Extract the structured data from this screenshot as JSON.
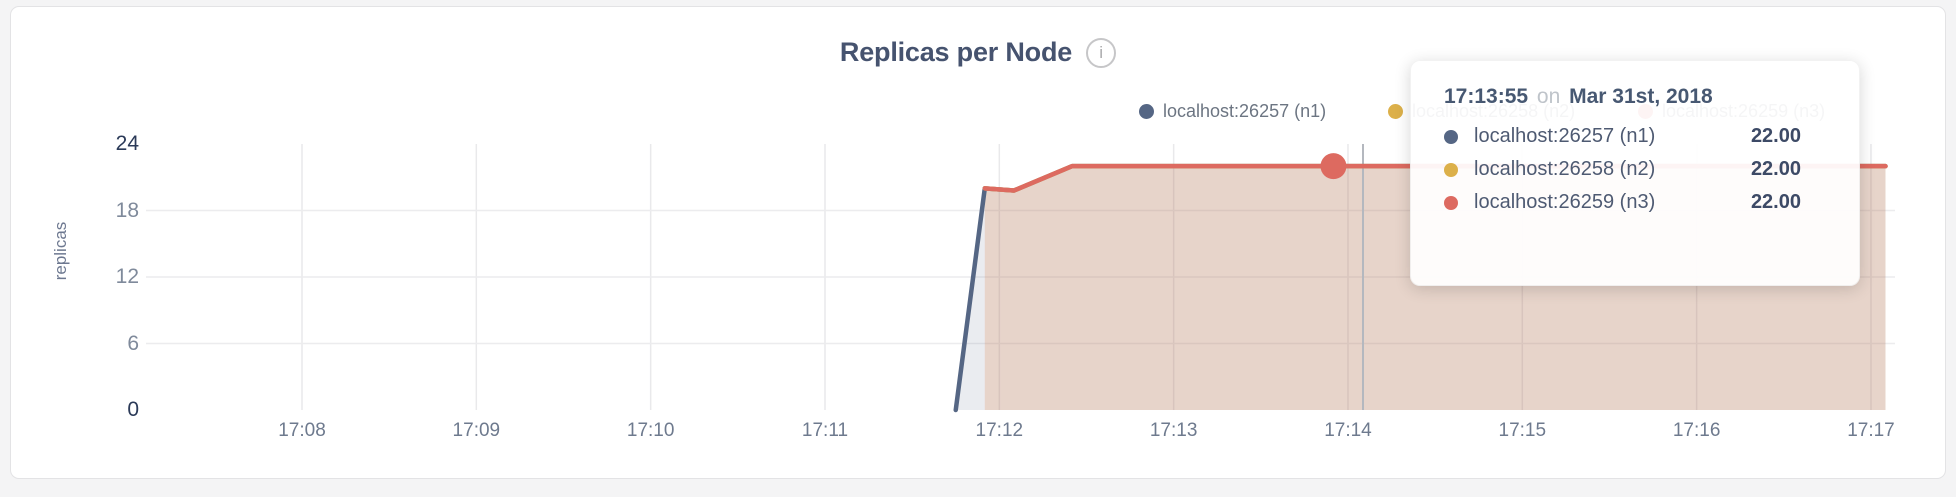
{
  "window": {
    "background": "#f4f4f5"
  },
  "card": {
    "background": "#ffffff",
    "border_color": "#e3e3e5"
  },
  "header": {
    "title": "Replicas per Node",
    "info_icon": "i"
  },
  "legend": {
    "items": [
      {
        "label": "localhost:26257 (n1)",
        "color": "#556684"
      },
      {
        "label": "localhost:26258 (n2)",
        "color": "#dcb04a"
      },
      {
        "label": "localhost:26259 (n3)",
        "color": "#dd6a60"
      }
    ]
  },
  "tooltip": {
    "time": "17:13:55",
    "preposition": "on",
    "date": "Mar 31st, 2018",
    "rows": [
      {
        "label": "localhost:26257 (n1)",
        "value": "22.00",
        "color": "#556684"
      },
      {
        "label": "localhost:26258 (n2)",
        "value": "22.00",
        "color": "#dcb04a"
      },
      {
        "label": "localhost:26259 (n3)",
        "value": "22.00",
        "color": "#dd6a60"
      }
    ]
  },
  "chart_data": {
    "type": "area",
    "title": "Replicas per Node",
    "xlabel": "",
    "ylabel": "replicas",
    "x_ticks": [
      "17:08",
      "17:09",
      "17:10",
      "17:11",
      "17:12",
      "17:13",
      "17:14",
      "17:15",
      "17:16",
      "17:17"
    ],
    "y_ticks": [
      0,
      6,
      12,
      18,
      24
    ],
    "ylim": [
      0,
      24
    ],
    "grid": true,
    "legend_position": "top-right",
    "series": [
      {
        "name": "localhost:26257 (n1)",
        "color": "#556684",
        "fill_opacity": 0.12,
        "points": [
          [
            "17:11:45",
            0
          ],
          [
            "17:11:55",
            20
          ],
          [
            "17:12:05",
            19.8
          ],
          [
            "17:12:25",
            22
          ],
          [
            "17:17:05",
            22
          ]
        ]
      },
      {
        "name": "localhost:26258 (n2)",
        "color": "#dcb04a",
        "fill_opacity": 0.12,
        "points": [
          [
            "17:11:55",
            20
          ],
          [
            "17:12:05",
            19.8
          ],
          [
            "17:12:25",
            22
          ],
          [
            "17:17:05",
            22
          ]
        ]
      },
      {
        "name": "localhost:26259 (n3)",
        "color": "#dd6a60",
        "fill_opacity": 0.13,
        "points": [
          [
            "17:11:55",
            20
          ],
          [
            "17:12:05",
            19.8
          ],
          [
            "17:12:25",
            22
          ],
          [
            "17:17:05",
            22
          ]
        ]
      }
    ],
    "hover": {
      "time": "17:13:55",
      "series": "localhost:26259 (n3)",
      "value": 22
    }
  }
}
